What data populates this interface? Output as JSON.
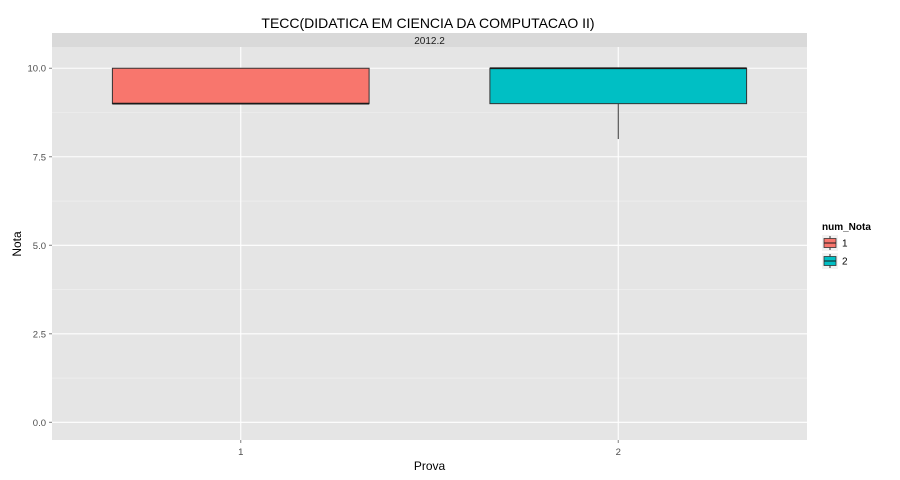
{
  "chart_data": {
    "type": "boxplot",
    "title": "TECC(DIDATICA EM CIENCIA DA COMPUTACAO II)",
    "facet_label": "2012.2",
    "xlabel": "Prova",
    "ylabel": "Nota",
    "categories": [
      "1",
      "2"
    ],
    "ylim": [
      -0.5,
      10.6
    ],
    "yticks": [
      0.0,
      2.5,
      5.0,
      7.5,
      10.0
    ],
    "ytick_labels": [
      "0.0",
      "2.5",
      "5.0",
      "7.5",
      "10.0"
    ],
    "grid": true,
    "legend": {
      "title": "num_Nota",
      "position": "right",
      "entries": [
        {
          "label": "1",
          "color": "#F8766D"
        },
        {
          "label": "2",
          "color": "#00BFC4"
        }
      ]
    },
    "series": [
      {
        "name": "1",
        "category": "1",
        "color": "#F8766D",
        "min": 9.0,
        "q1": 9.0,
        "median": 9.0,
        "q3": 10.0,
        "max": 10.0
      },
      {
        "name": "2",
        "category": "2",
        "color": "#00BFC4",
        "min": 8.0,
        "q1": 9.0,
        "median": 10.0,
        "q3": 10.0,
        "max": 10.0
      }
    ]
  }
}
